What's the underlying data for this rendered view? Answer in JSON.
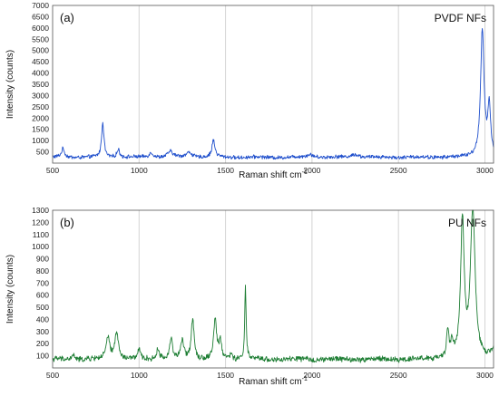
{
  "chart_data": [
    {
      "type": "line",
      "panel_label": "(a)",
      "series_name": "PVDF NFs",
      "color": "#1f4fcc",
      "xlabel": "Raman shift cm",
      "xlabel_sup": "-1",
      "ylabel": "Intensity (counts)",
      "xlim": [
        500,
        3050
      ],
      "ylim": [
        0,
        7000
      ],
      "xticks": [
        500,
        1000,
        1500,
        2000,
        2500,
        3000
      ],
      "yticks": [
        500,
        1000,
        1500,
        2000,
        2500,
        3000,
        3500,
        4000,
        4500,
        5000,
        5500,
        6000,
        6500,
        7000
      ],
      "grid": "vertical",
      "baseline": 260,
      "noise": 90,
      "peaks": [
        {
          "x": 560,
          "h": 380,
          "w": 10
        },
        {
          "x": 790,
          "h": 1550,
          "w": 8
        },
        {
          "x": 880,
          "h": 350,
          "w": 10
        },
        {
          "x": 1070,
          "h": 200,
          "w": 14
        },
        {
          "x": 1180,
          "h": 250,
          "w": 18
        },
        {
          "x": 1290,
          "h": 220,
          "w": 20
        },
        {
          "x": 1430,
          "h": 750,
          "w": 10
        },
        {
          "x": 1990,
          "h": 120,
          "w": 25
        },
        {
          "x": 2250,
          "h": 140,
          "w": 25
        },
        {
          "x": 2985,
          "h": 5650,
          "w": 12
        },
        {
          "x": 3025,
          "h": 2150,
          "w": 10
        }
      ]
    },
    {
      "type": "line",
      "panel_label": "(b)",
      "series_name": "PU NFs",
      "color": "#1e7e34",
      "xlabel": "Raman shift cm",
      "xlabel_sup": "-1",
      "ylabel": "Intensity (counts)",
      "xlim": [
        500,
        3050
      ],
      "ylim": [
        0,
        1300
      ],
      "xticks": [
        500,
        1000,
        1500,
        2000,
        2500,
        3000
      ],
      "yticks": [
        100,
        200,
        300,
        400,
        500,
        600,
        700,
        800,
        900,
        1000,
        1100,
        1200,
        1300
      ],
      "grid": "vertical",
      "baseline": 70,
      "noise": 25,
      "peaks": [
        {
          "x": 620,
          "h": 40,
          "w": 10
        },
        {
          "x": 820,
          "h": 180,
          "w": 12
        },
        {
          "x": 870,
          "h": 230,
          "w": 12
        },
        {
          "x": 1000,
          "h": 70,
          "w": 10
        },
        {
          "x": 1110,
          "h": 90,
          "w": 10
        },
        {
          "x": 1185,
          "h": 180,
          "w": 9
        },
        {
          "x": 1250,
          "h": 150,
          "w": 10
        },
        {
          "x": 1310,
          "h": 340,
          "w": 10
        },
        {
          "x": 1440,
          "h": 330,
          "w": 10
        },
        {
          "x": 1470,
          "h": 150,
          "w": 8
        },
        {
          "x": 1530,
          "h": 40,
          "w": 10
        },
        {
          "x": 1615,
          "h": 600,
          "w": 5
        },
        {
          "x": 2785,
          "h": 220,
          "w": 8
        },
        {
          "x": 2810,
          "h": 120,
          "w": 8
        },
        {
          "x": 2870,
          "h": 1130,
          "w": 12
        },
        {
          "x": 2930,
          "h": 1230,
          "w": 16
        },
        {
          "x": 3050,
          "h": 80,
          "w": 15
        }
      ]
    }
  ]
}
